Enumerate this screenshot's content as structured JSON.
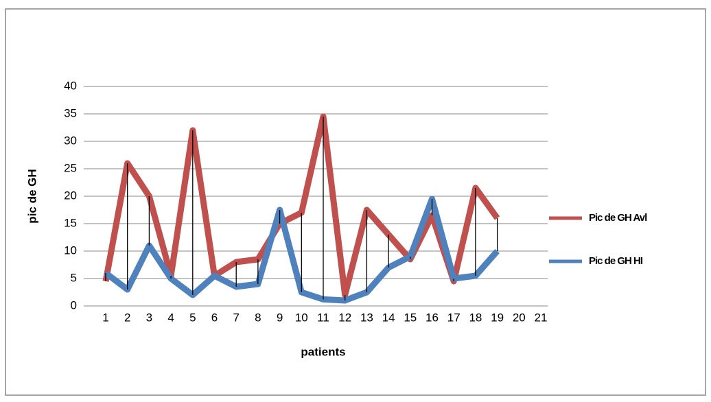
{
  "chart_data": {
    "type": "line",
    "x_label": "patients",
    "y_label": "pic de GH",
    "categories": [
      "1",
      "2",
      "3",
      "4",
      "5",
      "6",
      "7",
      "8",
      "9",
      "10",
      "11",
      "12",
      "13",
      "14",
      "15",
      "16",
      "17",
      "18",
      "19",
      "20",
      "21"
    ],
    "series": [
      {
        "name": "Pic de GH Avl",
        "color": "#c0504d",
        "values": [
          4.5,
          26,
          20,
          5.5,
          32,
          5.5,
          8,
          8.5,
          15,
          17,
          34.5,
          2,
          17.5,
          13,
          8.5,
          16.5,
          4.5,
          21.5,
          16,
          null,
          null
        ]
      },
      {
        "name": "Pic de GH HI",
        "color": "#4f81bd",
        "values": [
          6,
          3,
          11,
          5,
          2,
          5.5,
          3.5,
          4,
          17.5,
          2.5,
          1.2,
          1,
          2.5,
          7,
          9,
          19.5,
          5,
          5.5,
          10,
          null,
          null
        ]
      }
    ],
    "ylim": [
      0,
      40
    ],
    "yticks": [
      0,
      5,
      10,
      15,
      20,
      25,
      30,
      35,
      40
    ],
    "grid": true,
    "hilo_lines": true,
    "legend": "right"
  }
}
